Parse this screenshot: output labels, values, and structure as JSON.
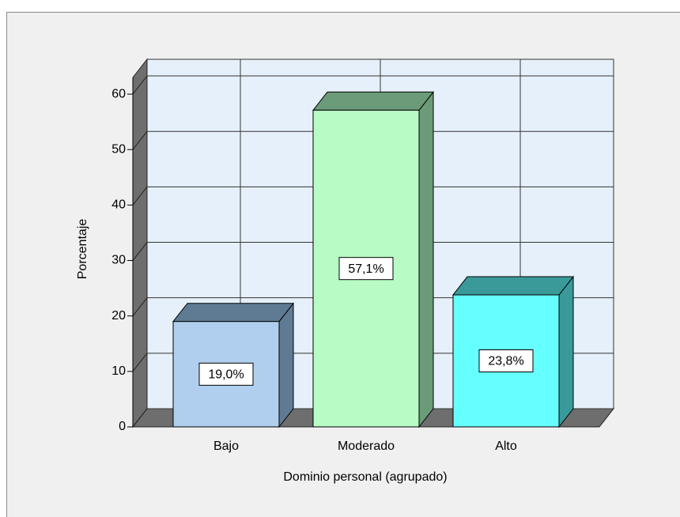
{
  "chart_data": {
    "type": "bar3d",
    "x_label": "Dominio personal (agrupado)",
    "y_label": "Porcentaje",
    "categories": [
      "Bajo",
      "Moderado",
      "Alto"
    ],
    "values": [
      19.0,
      57.1,
      23.8
    ],
    "value_labels": [
      "19,0%",
      "57,1%",
      "23,8%"
    ],
    "colors": [
      "#b0cfee",
      "#b8fbc4",
      "#66ffff"
    ],
    "side_colors": [
      "#5f7b93",
      "#6b9b78",
      "#3a9a9a"
    ],
    "ylim": [
      0,
      63
    ],
    "yticks": [
      0,
      10,
      20,
      30,
      40,
      50,
      60
    ],
    "grid": true
  }
}
